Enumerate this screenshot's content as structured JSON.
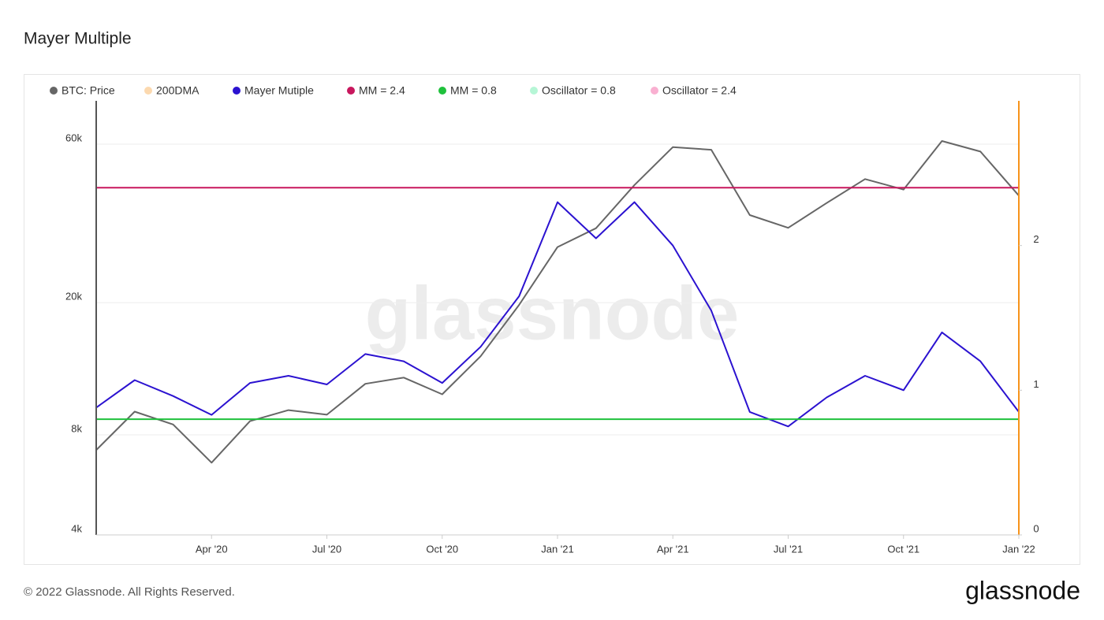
{
  "chart_data": {
    "type": "line",
    "title": "Mayer Multiple",
    "watermark": "glassnode",
    "footer": "© 2022 Glassnode. All Rights Reserved.",
    "brand": "glassnode",
    "log_scale": true,
    "grid": true,
    "x": [
      "2020-01",
      "2020-02",
      "2020-03",
      "2020-04",
      "2020-05",
      "2020-06",
      "2020-07",
      "2020-08",
      "2020-09",
      "2020-10",
      "2020-11",
      "2020-12",
      "2021-01",
      "2021-02",
      "2021-03",
      "2021-04",
      "2021-05",
      "2021-06",
      "2021-07",
      "2021-08",
      "2021-09",
      "2021-10",
      "2021-11",
      "2021-12",
      "2022-01"
    ],
    "xlim": [
      "2020-01",
      "2022-01"
    ],
    "xticks": [
      {
        "value": "2020-04",
        "label": "Apr '20"
      },
      {
        "value": "2020-07",
        "label": "Jul '20"
      },
      {
        "value": "2020-10",
        "label": "Oct '20"
      },
      {
        "value": "2021-01",
        "label": "Jan '21"
      },
      {
        "value": "2021-04",
        "label": "Apr '21"
      },
      {
        "value": "2021-07",
        "label": "Jul '21"
      },
      {
        "value": "2021-10",
        "label": "Oct '21"
      },
      {
        "value": "2022-01",
        "label": "Jan '22"
      }
    ],
    "ylim": [
      4000,
      81000
    ],
    "yticks": [
      {
        "value": 4000,
        "label": "4k"
      },
      {
        "value": 8000,
        "label": "8k"
      },
      {
        "value": 20000,
        "label": "20k"
      },
      {
        "value": 60000,
        "label": "60k"
      }
    ],
    "y2lim": [
      0,
      3
    ],
    "y2ticks": [
      0,
      1,
      2
    ],
    "series": [
      {
        "name": "BTC: Price",
        "color": "#666666",
        "values": [
          7200,
          9400,
          8600,
          6600,
          8800,
          9500,
          9200,
          11400,
          11900,
          10600,
          13800,
          19700,
          29400,
          33500,
          45200,
          58800,
          57700,
          36700,
          33600,
          39900,
          47100,
          43800,
          61300,
          57000,
          42000
        ]
      },
      {
        "name": "200DMA",
        "color": "#f7931a",
        "visible": false
      },
      {
        "name": "Mayer Mutiple",
        "color": "#2b12d0",
        "axis": "y2",
        "values": [
          0.88,
          1.07,
          0.96,
          0.83,
          1.05,
          1.1,
          1.04,
          1.25,
          1.2,
          1.05,
          1.3,
          1.65,
          2.3,
          2.05,
          2.3,
          2.0,
          1.55,
          0.85,
          0.75,
          0.95,
          1.1,
          1.0,
          1.4,
          1.2,
          0.85
        ]
      },
      {
        "name": "MM = 2.4",
        "color": "#c8175d",
        "axis": "y2",
        "level": 2.4
      },
      {
        "name": "MM = 0.8",
        "color": "#1fc13c",
        "axis": "y2",
        "level": 0.8
      },
      {
        "name": "Oscillator = 0.8",
        "color": "#2ee68a",
        "visible": false
      },
      {
        "name": "Oscillator = 2.4",
        "color": "#ee1e7a",
        "visible": false
      }
    ]
  }
}
